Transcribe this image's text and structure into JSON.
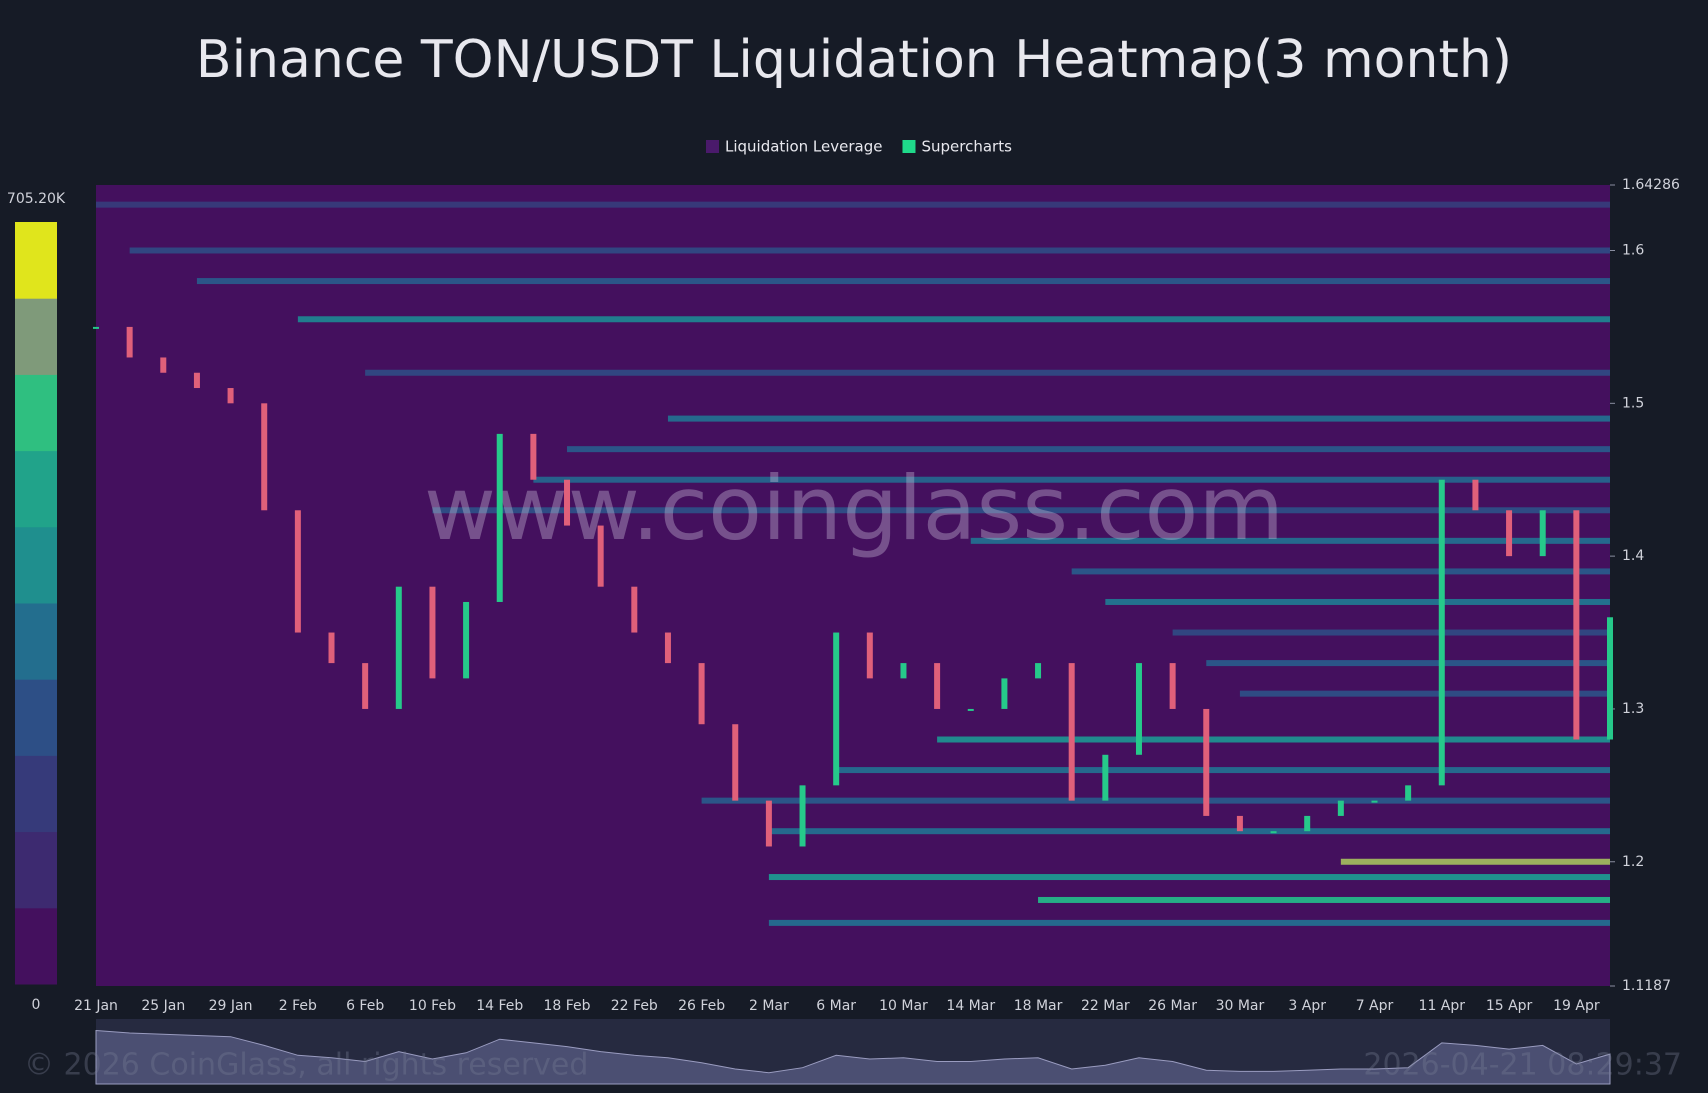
{
  "chart_data": {
    "type": "heatmap",
    "title": "Binance TON/USDT Liquidation Heatmap(3 month)",
    "legend": [
      {
        "name": "Liquidation Leverage",
        "color": "#4a1a6b"
      },
      {
        "name": "Supercharts",
        "color": "#1fd98a"
      }
    ],
    "watermark": "www.coinglass.com",
    "footer": "© 2026 CoinGlass, all rights reserved",
    "timestamp": "2026-04-21 08:29:37",
    "colorscale": [
      "#44105e",
      "#3d2a70",
      "#363a7a",
      "#2d4f86",
      "#236e8e",
      "#1f8f8e",
      "#21a38a",
      "#2fbf80",
      "#7f9a7a",
      "#e0e51c"
    ],
    "colorbar": {
      "min": 0,
      "max": {
        "value": 705200,
        "label": "705.20K"
      }
    },
    "ylim": [
      1.1187,
      1.64286
    ],
    "yticks": [
      1.1187,
      1.2,
      1.3,
      1.4,
      1.5,
      1.6,
      1.64286
    ],
    "categories": [
      "21 Jan",
      null,
      "25 Jan",
      null,
      "29 Jan",
      null,
      "2 Feb",
      null,
      "6 Feb",
      null,
      "10 Feb",
      null,
      "14 Feb",
      null,
      "18 Feb",
      null,
      "22 Feb",
      null,
      "26 Feb",
      null,
      "2 Mar",
      null,
      "6 Mar",
      null,
      "10 Mar",
      null,
      "14 Mar",
      null,
      "18 Mar",
      null,
      "22 Mar",
      null,
      "26 Mar",
      null,
      "30 Mar",
      null,
      "3 Apr",
      null,
      "7 Apr",
      null,
      "11 Apr",
      null,
      "15 Apr",
      null,
      "19 Apr",
      null
    ],
    "price": {
      "up_color": "#26c98a",
      "down_color": "#e0607a",
      "values": [
        1.55,
        1.53,
        1.52,
        1.51,
        1.5,
        1.43,
        1.35,
        1.33,
        1.3,
        1.38,
        1.32,
        1.37,
        1.48,
        1.45,
        1.42,
        1.38,
        1.35,
        1.33,
        1.29,
        1.24,
        1.21,
        1.25,
        1.35,
        1.32,
        1.33,
        1.3,
        1.3,
        1.32,
        1.33,
        1.24,
        1.27,
        1.33,
        1.3,
        1.23,
        1.22,
        1.22,
        1.23,
        1.24,
        1.24,
        1.25,
        1.45,
        1.43,
        1.4,
        1.43,
        1.28,
        1.36
      ]
    },
    "levels": {
      "price": [
        1.63,
        1.6,
        1.58,
        1.555,
        1.52,
        1.49,
        1.47,
        1.45,
        1.43,
        1.41,
        1.39,
        1.37,
        1.35,
        1.33,
        1.31,
        1.28,
        1.26,
        1.24,
        1.22,
        1.2,
        1.19,
        1.175,
        1.16
      ],
      "intensity": [
        150000,
        200000,
        250000,
        350000,
        200000,
        300000,
        250000,
        280000,
        220000,
        300000,
        250000,
        320000,
        200000,
        250000,
        220000,
        380000,
        300000,
        250000,
        300000,
        650000,
        400000,
        500000,
        300000
      ],
      "start": [
        0,
        1,
        3,
        6,
        8,
        17,
        14,
        13,
        10,
        26,
        29,
        30,
        32,
        33,
        34,
        25,
        22,
        18,
        20,
        37,
        20,
        28,
        20
      ]
    }
  }
}
